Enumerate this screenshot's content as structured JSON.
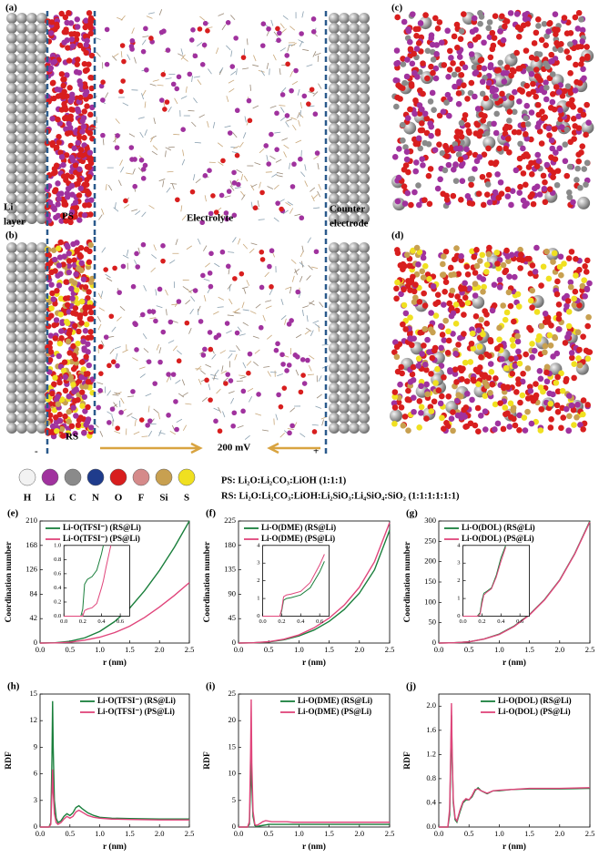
{
  "figure": {
    "panel_labels": [
      "(a)",
      "(b)",
      "(c)",
      "(d)"
    ],
    "li_layer": [
      "Li",
      "layer"
    ],
    "ps": "PS",
    "rs": "RS",
    "electrolyte": "Electrolyte",
    "counter_electrode": [
      "Counter",
      "electrode"
    ],
    "minus": "-",
    "plus": "+",
    "voltage": "200 mV",
    "atoms": [
      {
        "symbol": "H",
        "color": "#f2f2f2"
      },
      {
        "symbol": "Li",
        "color": "#a0329e"
      },
      {
        "symbol": "C",
        "color": "#8a8a8a"
      },
      {
        "symbol": "N",
        "color": "#1f3c8c"
      },
      {
        "symbol": "O",
        "color": "#d81e1e"
      },
      {
        "symbol": "F",
        "color": "#d58a8a"
      },
      {
        "symbol": "Si",
        "color": "#c8a050"
      },
      {
        "symbol": "S",
        "color": "#f0e020"
      }
    ],
    "ps_composition": "PS: Li₂O:Li₂CO₃:LiOH (1:1:1)",
    "rs_composition": "RS: Li₂O:Li₂CO₃:LiOH:Li₂SiO₃:Li₄SiO₄:SiO₂ (1:1:1:1:1:1)"
  },
  "chart_data": [
    {
      "type": "line",
      "panel_label": "(e)",
      "xlabel": "r (nm)",
      "ylabel": "Coordination number",
      "legend": "upper left",
      "x": [
        0,
        0.25,
        0.5,
        0.75,
        1,
        1.25,
        1.5,
        1.75,
        2,
        2.25,
        2.5
      ],
      "series": [
        {
          "name": "Li-O(TFSI⁻) (RS@Li)",
          "color": "#1a7f3c",
          "values": [
            0,
            0.5,
            3,
            9,
            20,
            37,
            60,
            90,
            125,
            165,
            210
          ]
        },
        {
          "name": "Li-O(TFSI⁻) (PS@Li)",
          "color": "#e0457b",
          "values": [
            0,
            0.3,
            1.5,
            5,
            10,
            18,
            29,
            44,
            62,
            82,
            104
          ]
        }
      ],
      "xlim": [
        0,
        2.5
      ],
      "xticks": [
        {
          "value": 0,
          "label": "0.0"
        },
        0.5,
        {
          "value": 1,
          "label": "1.0"
        },
        1.5,
        {
          "value": 2,
          "label": "2.0"
        },
        2.5
      ],
      "ylim": [
        0,
        210
      ],
      "yticks": [
        0,
        42,
        84,
        126,
        168,
        210
      ],
      "inset": {
        "x": [
          0,
          0.18,
          0.2,
          0.22,
          0.25,
          0.3,
          0.35,
          0.4,
          0.42,
          0.45,
          0.5
        ],
        "series": [
          {
            "color": "#1a7f3c",
            "values": [
              0,
              0,
              0.1,
              0.45,
              0.52,
              0.56,
              0.65,
              0.88,
              1.0,
              null,
              null
            ]
          },
          {
            "color": "#e0457b",
            "values": [
              0,
              0,
              0,
              0.08,
              0.1,
              0.12,
              0.18,
              0.4,
              0.5,
              0.7,
              1.0
            ]
          }
        ],
        "xlim": [
          0,
          0.7
        ],
        "xticks": [
          {
            "value": 0,
            "label": "0.0"
          },
          0.2,
          0.4,
          0.6
        ],
        "ylim": [
          0,
          1
        ],
        "yticks": [
          {
            "value": 0,
            "label": "0.0"
          },
          0.2,
          0.4,
          0.6,
          0.8,
          {
            "value": 1,
            "label": "1.0"
          }
        ]
      }
    },
    {
      "type": "line",
      "panel_label": "(f)",
      "xlabel": "r (nm)",
      "ylabel": "Coordination number",
      "legend": "upper left",
      "x": [
        0,
        0.25,
        0.5,
        0.75,
        1,
        1.25,
        1.5,
        1.75,
        2,
        2.25,
        2.5
      ],
      "series": [
        {
          "name": "Li-O(DME) (RS@Li)",
          "color": "#1a7f3c",
          "values": [
            0,
            0.4,
            2,
            6,
            13,
            24,
            40,
            62,
            92,
            135,
            208
          ]
        },
        {
          "name": "Li-O(DME) (PS@Li)",
          "color": "#e0457b",
          "values": [
            0,
            0.5,
            2.5,
            7,
            15,
            28,
            46,
            70,
            103,
            150,
            222
          ]
        }
      ],
      "xlim": [
        0,
        2.5
      ],
      "xticks": [
        {
          "value": 0,
          "label": "0.0"
        },
        0.5,
        {
          "value": 1,
          "label": "1.0"
        },
        1.5,
        {
          "value": 2,
          "label": "2.0"
        },
        2.5
      ],
      "ylim": [
        0,
        225
      ],
      "yticks": [
        0,
        45,
        90,
        135,
        180,
        225
      ],
      "inset": {
        "x": [
          0,
          0.18,
          0.2,
          0.22,
          0.25,
          0.3,
          0.4,
          0.5,
          0.6,
          0.65
        ],
        "series": [
          {
            "color": "#1a7f3c",
            "values": [
              0,
              0,
              0.3,
              0.9,
              1.0,
              1.05,
              1.2,
              1.6,
              2.5,
              3.1
            ]
          },
          {
            "color": "#e0457b",
            "values": [
              0,
              0,
              0.4,
              1.1,
              1.2,
              1.25,
              1.4,
              1.9,
              2.9,
              3.5
            ]
          }
        ],
        "xlim": [
          0,
          0.7
        ],
        "xticks": [
          {
            "value": 0,
            "label": "0.0"
          },
          0.2,
          0.4,
          0.6
        ],
        "ylim": [
          0,
          4
        ],
        "yticks": [
          0,
          1,
          2,
          3,
          4
        ]
      }
    },
    {
      "type": "line",
      "panel_label": "(g)",
      "xlabel": "r (nm)",
      "ylabel": "Coordination number",
      "legend": "upper left",
      "x": [
        0,
        0.25,
        0.5,
        0.75,
        1,
        1.25,
        1.5,
        1.75,
        2,
        2.25,
        2.5
      ],
      "series": [
        {
          "name": "Li-O(DOL) (RS@Li)",
          "color": "#1a7f3c",
          "values": [
            0,
            0.6,
            3,
            10,
            22,
            42,
            70,
            107,
            155,
            220,
            300
          ]
        },
        {
          "name": "Li-O(DOL) (PS@Li)",
          "color": "#e0457b",
          "values": [
            0,
            0.6,
            3,
            10,
            21,
            41,
            69,
            106,
            154,
            219,
            298
          ]
        }
      ],
      "xlim": [
        0,
        2.5
      ],
      "xticks": [
        {
          "value": 0,
          "label": "0.0"
        },
        0.5,
        {
          "value": 1,
          "label": "1.0"
        },
        1.5,
        {
          "value": 2,
          "label": "2.0"
        },
        2.5
      ],
      "ylim": [
        0,
        300
      ],
      "yticks": [
        0,
        50,
        100,
        150,
        200,
        250,
        300
      ],
      "inset": {
        "x": [
          0,
          0.15,
          0.18,
          0.2,
          0.22,
          0.25,
          0.3,
          0.35,
          0.4,
          0.45
        ],
        "series": [
          {
            "color": "#1a7f3c",
            "values": [
              0,
              0,
              0.2,
              0.9,
              1.3,
              1.4,
              1.6,
              2.3,
              3.3,
              4.0
            ]
          },
          {
            "color": "#e0457b",
            "values": [
              0,
              0,
              0.1,
              0.7,
              1.2,
              1.35,
              1.55,
              2.2,
              3.1,
              3.9
            ]
          }
        ],
        "xlim": [
          0,
          0.7
        ],
        "xticks": [
          {
            "value": 0,
            "label": "0.0"
          },
          0.2,
          0.4,
          0.6
        ],
        "ylim": [
          0,
          4
        ],
        "yticks": [
          0,
          1,
          2,
          3,
          4
        ]
      }
    },
    {
      "type": "line",
      "panel_label": "(h)",
      "xlabel": "r (nm)",
      "ylabel": "RDF",
      "legend": "upper right",
      "x": [
        0,
        0.15,
        0.18,
        0.2,
        0.21,
        0.22,
        0.24,
        0.27,
        0.3,
        0.35,
        0.4,
        0.45,
        0.5,
        0.55,
        0.6,
        0.65,
        0.7,
        0.8,
        0.9,
        1.0,
        1.2,
        1.5,
        2.0,
        2.5
      ],
      "series": [
        {
          "name": "Li-O(TFSI⁻) (RS@Li)",
          "color": "#1a7f3c",
          "values": [
            0,
            0,
            0.5,
            8,
            14.2,
            9,
            3,
            1,
            0.5,
            0.7,
            1.2,
            1.5,
            1.3,
            1.6,
            2.2,
            2.4,
            2.1,
            1.6,
            1.3,
            1.1,
            1.0,
            0.95,
            0.9,
            0.9
          ]
        },
        {
          "name": "Li-O(TFSI⁻) (PS@Li)",
          "color": "#e0457b",
          "values": [
            0,
            0,
            0.3,
            4,
            6.5,
            4,
            1.5,
            0.5,
            0.3,
            0.5,
            0.9,
            1.2,
            1.0,
            1.2,
            1.7,
            1.9,
            1.7,
            1.3,
            1.1,
            1.0,
            0.9,
            0.85,
            0.8,
            0.8
          ]
        }
      ],
      "xlim": [
        0,
        2.5
      ],
      "xticks": [
        {
          "value": 0,
          "label": "0.0"
        },
        0.5,
        {
          "value": 1,
          "label": "1.0"
        },
        1.5,
        {
          "value": 2,
          "label": "2.0"
        },
        2.5
      ],
      "ylim": [
        0,
        15
      ],
      "yticks": [
        0,
        3,
        6,
        9,
        12,
        15
      ]
    },
    {
      "type": "line",
      "panel_label": "(i)",
      "xlabel": "r (nm)",
      "ylabel": "RDF",
      "legend": "upper right",
      "x": [
        0,
        0.15,
        0.18,
        0.2,
        0.21,
        0.22,
        0.24,
        0.27,
        0.3,
        0.35,
        0.4,
        0.45,
        0.5,
        0.55,
        0.6,
        0.65,
        0.7,
        0.8,
        0.9,
        1.0,
        1.2,
        1.5,
        2.0,
        2.5
      ],
      "series": [
        {
          "name": "Li-O(DME) (RS@Li)",
          "color": "#1a7f3c",
          "values": [
            0,
            0,
            0.5,
            8,
            15,
            8,
            2,
            0.3,
            0.1,
            0.2,
            0.3,
            0.4,
            0.5,
            0.5,
            0.5,
            0.5,
            0.5,
            0.5,
            0.5,
            0.5,
            0.5,
            0.5,
            0.5,
            0.5
          ]
        },
        {
          "name": "Li-O(DME) (PS@Li)",
          "color": "#e0457b",
          "values": [
            0,
            0,
            1,
            14,
            24,
            12,
            3,
            0.5,
            0.3,
            0.6,
            1.0,
            1.2,
            1.1,
            1.0,
            1.0,
            1.0,
            1.0,
            1.0,
            0.9,
            0.9,
            0.9,
            0.9,
            0.9,
            0.9
          ]
        }
      ],
      "xlim": [
        0,
        2.5
      ],
      "xticks": [
        {
          "value": 0,
          "label": "0.0"
        },
        0.5,
        {
          "value": 1,
          "label": "1.0"
        },
        1.5,
        {
          "value": 2,
          "label": "2.0"
        },
        2.5
      ],
      "ylim": [
        0,
        25
      ],
      "yticks": [
        0,
        5,
        10,
        15,
        20,
        25
      ]
    },
    {
      "type": "line",
      "panel_label": "(j)",
      "xlabel": "r (nm)",
      "ylabel": "RDF",
      "legend": "upper right",
      "x": [
        0,
        0.15,
        0.18,
        0.2,
        0.21,
        0.22,
        0.24,
        0.27,
        0.3,
        0.35,
        0.4,
        0.45,
        0.5,
        0.55,
        0.6,
        0.65,
        0.7,
        0.8,
        0.9,
        1.0,
        1.2,
        1.5,
        2.0,
        2.5
      ],
      "series": [
        {
          "name": "Li-O(DOL) (RS@Li)",
          "color": "#1a7f3c",
          "values": [
            0,
            0,
            0.2,
            1.2,
            1.85,
            1.2,
            0.4,
            0.12,
            0.08,
            0.25,
            0.4,
            0.45,
            0.45,
            0.5,
            0.6,
            0.65,
            0.6,
            0.55,
            0.6,
            0.6,
            0.62,
            0.63,
            0.63,
            0.64
          ]
        },
        {
          "name": "Li-O(DOL) (PS@Li)",
          "color": "#e0457b",
          "values": [
            0,
            0,
            0.3,
            1.4,
            2.05,
            1.3,
            0.45,
            0.15,
            0.1,
            0.28,
            0.42,
            0.47,
            0.45,
            0.52,
            0.62,
            0.63,
            0.6,
            0.56,
            0.6,
            0.61,
            0.62,
            0.64,
            0.64,
            0.65
          ]
        }
      ],
      "xlim": [
        0,
        2.5
      ],
      "xticks": [
        {
          "value": 0,
          "label": "0.0"
        },
        0.5,
        {
          "value": 1,
          "label": "1.0"
        },
        1.5,
        {
          "value": 2,
          "label": "2.0"
        },
        2.5
      ],
      "ylim": [
        0,
        2.2
      ],
      "yticks": [
        {
          "value": 0,
          "label": "0.0"
        },
        0.4,
        0.8,
        1.2,
        1.6,
        {
          "value": 2,
          "label": "2.0"
        }
      ]
    }
  ]
}
